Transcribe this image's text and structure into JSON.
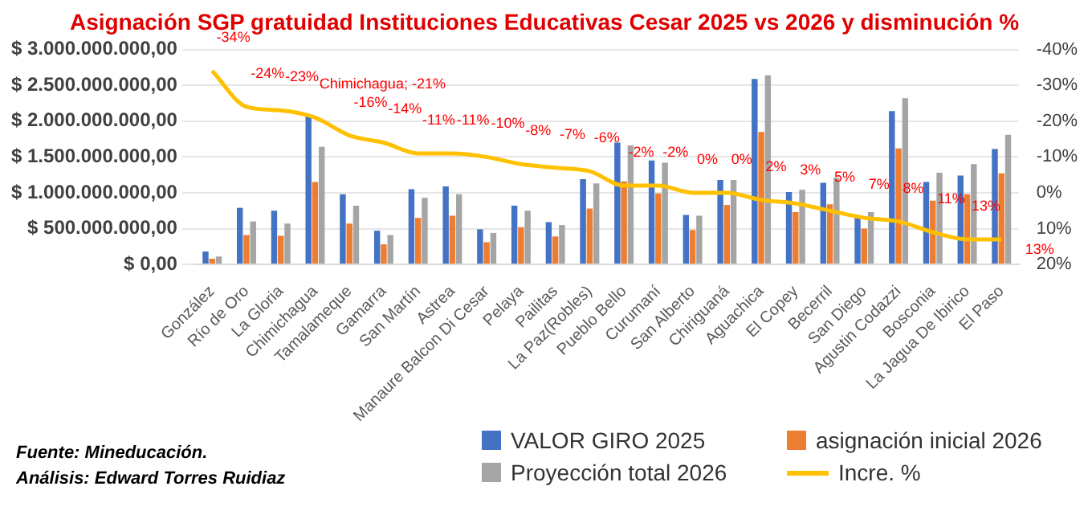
{
  "chart_data": {
    "type": "bar",
    "title": "Asignación SGP gratuidad Instituciones Educativas Cesar 2025 vs 2026 y disminución %",
    "categories": [
      "González",
      "Río de Oro",
      "La Gloria",
      "Chimichagua",
      "Tamalameque",
      "Gamarra",
      "San Martín",
      "Astrea",
      "Manaure Balcon Di Cesar",
      "Pelaya",
      "Pailitas",
      "La Paz(Robles)",
      "Pueblo Bello",
      "Curumaní",
      "San Alberto",
      "Chiriguaná",
      "Aguachica",
      "El Copey",
      "Becerril",
      "San Diego",
      "Agustin Codazzi",
      "Bosconia",
      "La Jagua De Ibirico",
      "El Paso"
    ],
    "series": [
      {
        "name": "VALOR GIRO 2025",
        "color": "#4472c4",
        "values": [
          180000000,
          790000000,
          750000000,
          2070000000,
          980000000,
          470000000,
          1050000000,
          1090000000,
          490000000,
          820000000,
          590000000,
          1190000000,
          1700000000,
          1450000000,
          690000000,
          1180000000,
          2590000000,
          1010000000,
          1140000000,
          660000000,
          2140000000,
          1150000000,
          1240000000,
          1610000000
        ]
      },
      {
        "name": "asignación inicial 2026",
        "color": "#ed7d31",
        "values": [
          80000000,
          410000000,
          400000000,
          1150000000,
          570000000,
          280000000,
          650000000,
          680000000,
          310000000,
          520000000,
          390000000,
          780000000,
          1160000000,
          990000000,
          480000000,
          830000000,
          1850000000,
          730000000,
          840000000,
          500000000,
          1620000000,
          890000000,
          980000000,
          1270000000
        ]
      },
      {
        "name": "Proyección total 2026",
        "color": "#a5a5a5",
        "values": [
          110000000,
          600000000,
          570000000,
          1640000000,
          820000000,
          410000000,
          930000000,
          980000000,
          440000000,
          750000000,
          550000000,
          1130000000,
          1660000000,
          1420000000,
          680000000,
          1180000000,
          2640000000,
          1040000000,
          1210000000,
          730000000,
          2320000000,
          1280000000,
          1400000000,
          1810000000
        ]
      },
      {
        "name": "Incre. %",
        "color": "#ffc000",
        "type": "line",
        "axis": "y2",
        "values": [
          -34,
          -24,
          -23,
          -21,
          -16,
          -14,
          -11,
          -11,
          -10,
          -8,
          -7,
          -6,
          -2,
          -2,
          0,
          0,
          2,
          3,
          5,
          7,
          8,
          11,
          13,
          13
        ],
        "value_labels": [
          "-34%",
          "-24%",
          "-23%",
          "Chimichagua; -21%",
          "-16%",
          "-14%",
          "-11%",
          "-11%",
          "-10%",
          "-8%",
          "-7%",
          "-6%",
          "-2%",
          "-2%",
          "0%",
          "0%",
          "2%",
          "3%",
          "5%",
          "7%",
          "8%",
          "11%",
          "13%",
          "13%"
        ]
      }
    ],
    "ylim": [
      0,
      3000000000
    ],
    "yticks": [
      {
        "value": 0,
        "label": "$ 0,00"
      },
      {
        "value": 500000000,
        "label": "$ 500.000.000,00"
      },
      {
        "value": 1000000000,
        "label": "$ 1.000.000.000,00"
      },
      {
        "value": 1500000000,
        "label": "$ 1.500.000.000,00"
      },
      {
        "value": 2000000000,
        "label": "$ 2.000.000.000,00"
      },
      {
        "value": 2500000000,
        "label": "$ 2.500.000.000,00"
      },
      {
        "value": 3000000000,
        "label": "$ 3.000.000.000,00"
      }
    ],
    "y2lim": [
      20,
      -40
    ],
    "y2ticks": [
      {
        "value": -40,
        "label": "-40%"
      },
      {
        "value": -30,
        "label": "-30%"
      },
      {
        "value": -20,
        "label": "-20%"
      },
      {
        "value": -10,
        "label": "-10%"
      },
      {
        "value": 0,
        "label": "0%"
      },
      {
        "value": 10,
        "label": "10%"
      },
      {
        "value": 20,
        "label": "20%"
      }
    ],
    "grid": "y",
    "legend": "bottom right",
    "marker": "none",
    "annotations": [
      "Fuente: Mineducación.",
      "Análisis: Edward Torres Ruidiaz"
    ]
  }
}
